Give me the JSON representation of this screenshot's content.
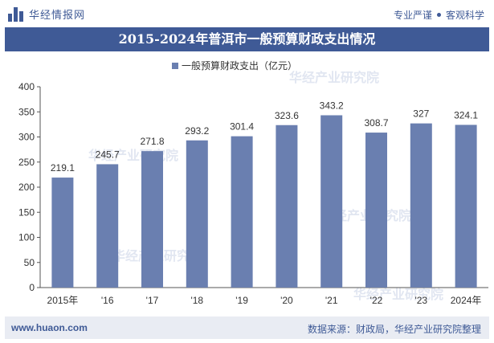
{
  "header": {
    "brand": "华经情报网",
    "tag1": "专业严谨",
    "tag2": "客观科学"
  },
  "footer": {
    "url": "www.huaon.com",
    "source": "数据来源：财政局，华经产业研究院整理"
  },
  "colors": {
    "primary": "#3f5a96",
    "bar": "#6a7fb0"
  },
  "chart_data": {
    "type": "bar",
    "title": "2015-2024年普洱市一般预算财政支出情况",
    "legend": "一般预算财政支出（亿元）",
    "legend_position": "top-center",
    "categories": [
      "2015年",
      "'16",
      "'17",
      "'18",
      "'19",
      "'20",
      "'21",
      "'22",
      "'23",
      "2024年"
    ],
    "values": [
      219.1,
      245.7,
      271.8,
      293.2,
      301.4,
      323.6,
      343.2,
      308.7,
      327,
      324.1
    ],
    "value_labels": [
      "219.1",
      "245.7",
      "271.8",
      "293.2",
      "301.4",
      "323.6",
      "343.2",
      "308.7",
      "327",
      "324.1"
    ],
    "ylim": [
      0,
      400
    ],
    "yticks": [
      0,
      50,
      100,
      150,
      200,
      250,
      300,
      350,
      400
    ],
    "grid": false
  }
}
